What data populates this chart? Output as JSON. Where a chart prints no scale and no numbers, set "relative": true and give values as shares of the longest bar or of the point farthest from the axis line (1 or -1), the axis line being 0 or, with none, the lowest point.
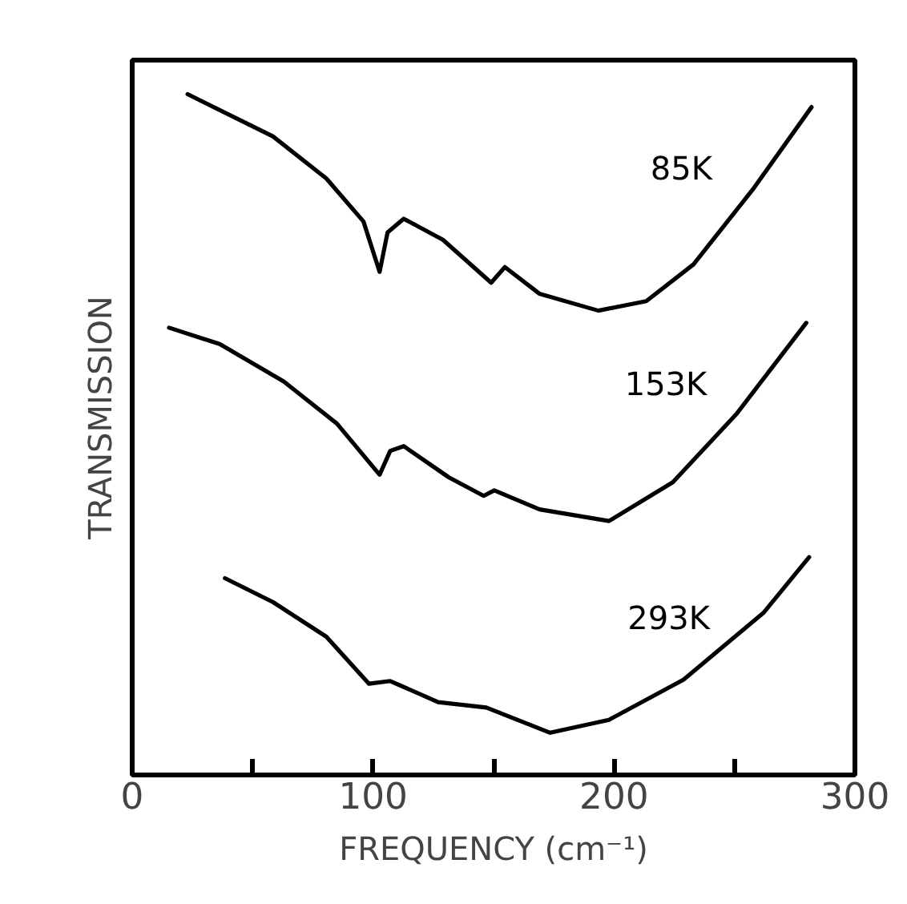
{
  "chart_data": {
    "type": "line",
    "relative": true,
    "xlabel": "FREQUENCY (cm⁻¹)",
    "ylabel": "TRANSMISSION",
    "xlim": [
      0,
      300
    ],
    "xticks": [
      0,
      {
        "value": 50,
        "label": null
      },
      100,
      {
        "value": 150,
        "label": null
      },
      200,
      {
        "value": 250,
        "label": null
      },
      300
    ],
    "tick_labels": "x",
    "grid": false,
    "marker": "none",
    "line_style": "solid",
    "series": [
      {
        "name": "85K",
        "color": "#000000",
        "x": [
          23,
          58.4,
          80.6,
          96,
          102.7,
          106,
          112.7,
          129,
          149,
          154.7,
          169,
          193.5,
          213.4,
          233,
          257.6,
          282
        ],
        "values": [
          1.0,
          0.938,
          0.876,
          0.813,
          0.739,
          0.797,
          0.817,
          0.786,
          0.723,
          0.746,
          0.707,
          0.682,
          0.696,
          0.75,
          0.86,
          0.981
        ]
      },
      {
        "name": "153K",
        "color": "#000000",
        "x": [
          15.3,
          36.3,
          62.9,
          85,
          102.7,
          107.1,
          112.7,
          131.5,
          145.9,
          150.3,
          169.1,
          197.9,
          224.4,
          251,
          279.8
        ],
        "values": [
          0.657,
          0.633,
          0.578,
          0.516,
          0.441,
          0.476,
          0.483,
          0.437,
          0.41,
          0.418,
          0.39,
          0.373,
          0.43,
          0.531,
          0.664
        ]
      },
      {
        "name": "293K",
        "color": "#000000",
        "x": [
          38.5,
          58.4,
          80.6,
          98.3,
          107.1,
          127,
          147,
          173.5,
          197.9,
          228.9,
          262,
          281
        ],
        "values": [
          0.289,
          0.254,
          0.203,
          0.134,
          0.138,
          0.107,
          0.099,
          0.062,
          0.081,
          0.14,
          0.238,
          0.32
        ]
      }
    ]
  }
}
